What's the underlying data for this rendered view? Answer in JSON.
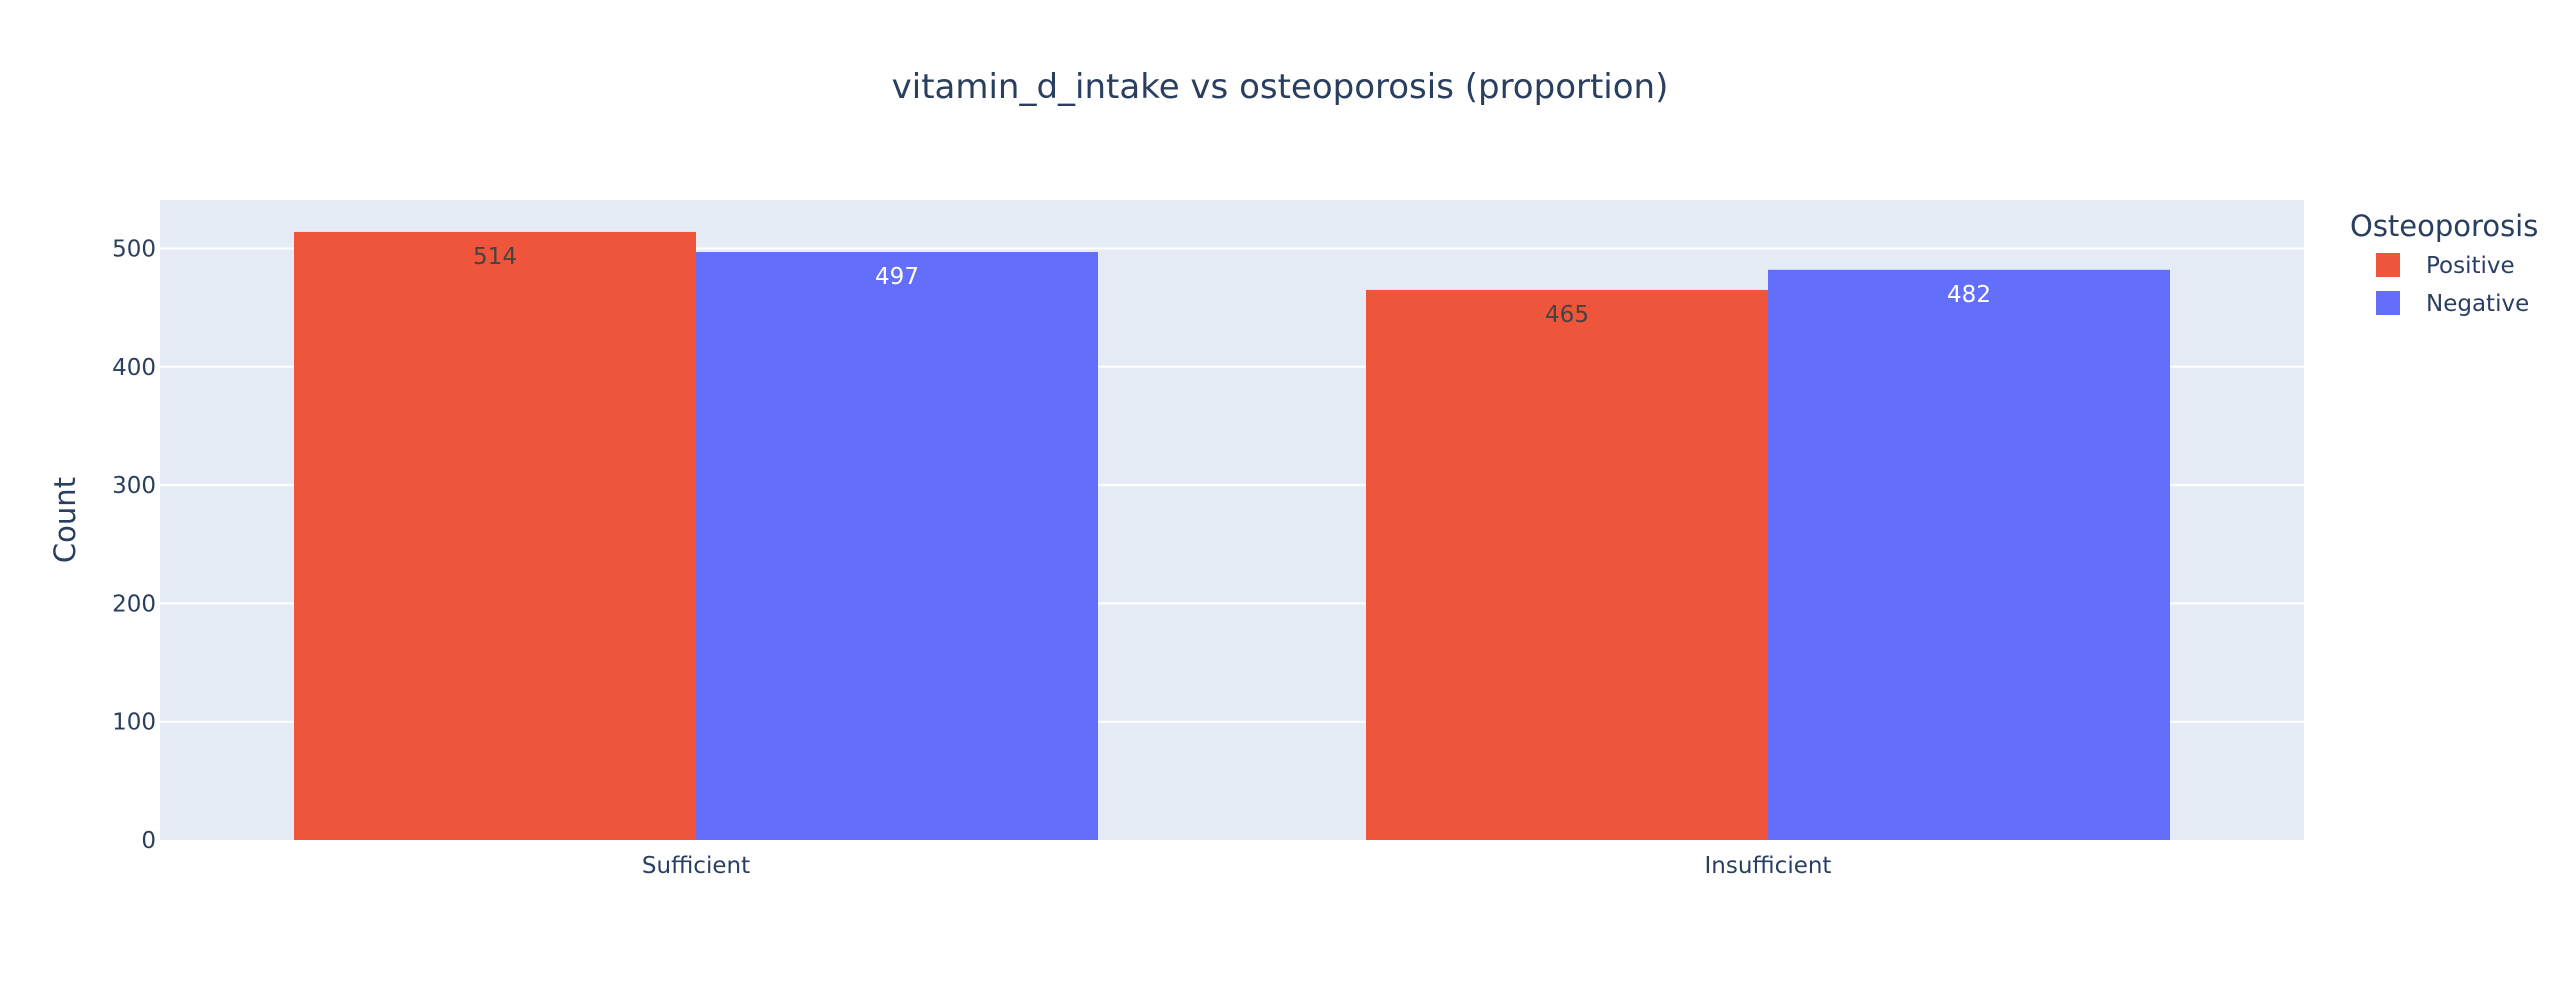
{
  "chart_data": {
    "type": "bar",
    "title": "vitamin_d_intake vs osteoporosis (proportion)",
    "xlabel": "",
    "ylabel": "Count",
    "categories": [
      "Sufficient",
      "Insufficient"
    ],
    "series": [
      {
        "name": "Positive",
        "values": [
          514,
          465
        ],
        "color": "#EF553B"
      },
      {
        "name": "Negative",
        "values": [
          497,
          482
        ],
        "color": "#636EFA"
      }
    ],
    "ylim": [
      0,
      541
    ],
    "yticks": [
      0,
      100,
      200,
      300,
      400,
      500
    ],
    "grid": true,
    "legend": {
      "title": "Osteoporosis",
      "position": "top-right"
    },
    "colors": {
      "plot_background": "#E5ECF6",
      "grid": "#ffffff",
      "text": "#2a3f5f"
    }
  }
}
